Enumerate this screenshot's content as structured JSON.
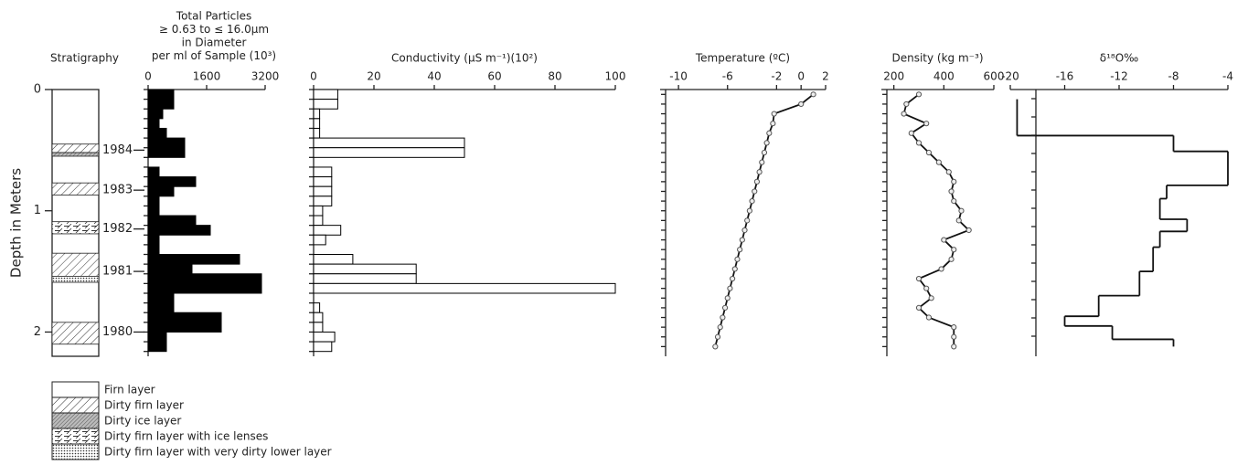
{
  "chart_data": [
    {
      "type": "stratigraphy",
      "title": "Stratigraphy",
      "ylabel": "Depth in Meters",
      "ylim": [
        0,
        2.2
      ],
      "yticks": [
        0,
        1,
        2
      ],
      "years": [
        {
          "label": "1984",
          "depth": 0.5
        },
        {
          "label": "1983",
          "depth": 0.83
        },
        {
          "label": "1982",
          "depth": 1.15
        },
        {
          "label": "1981",
          "depth": 1.5
        },
        {
          "label": "1980",
          "depth": 2.0
        }
      ],
      "legend": [
        {
          "label": "Firn layer",
          "layers": []
        },
        {
          "label": "Dirty firn layer",
          "layers": [
            [
              0.45,
              0.52
            ],
            [
              0.77,
              0.87
            ],
            [
              1.35,
              1.54
            ],
            [
              1.92,
              2.1
            ]
          ]
        },
        {
          "label": "Dirty ice layer",
          "layers": [
            [
              0.52,
              0.55
            ]
          ]
        },
        {
          "label": "Dirty firn layer with ice lenses",
          "layers": [
            [
              1.09,
              1.19
            ]
          ]
        },
        {
          "label": "Dirty firn layer with very dirty lower layer",
          "layers": [
            [
              1.54,
              1.59
            ]
          ]
        }
      ]
    },
    {
      "type": "bar",
      "title": [
        "Total Particles",
        "≥ 0.63 to ≤ 16.0µm",
        "in Diameter",
        "per ml of Sample (10³)"
      ],
      "color": "#000000",
      "xlim": [
        0,
        3200
      ],
      "xticks": [
        0,
        1600,
        3200
      ],
      "depth_edges": [
        0,
        0.08,
        0.16,
        0.24,
        0.32,
        0.4,
        0.48,
        0.56,
        0.64,
        0.72,
        0.8,
        0.88,
        0.96,
        1.04,
        1.12,
        1.2,
        1.28,
        1.36,
        1.44,
        1.52,
        1.6,
        1.68,
        1.76,
        1.84,
        1.92,
        2,
        2.08,
        2.16
      ],
      "values": [
        700,
        700,
        400,
        300,
        500,
        1000,
        1000,
        0,
        300,
        1300,
        700,
        300,
        300,
        1300,
        1700,
        300,
        300,
        2500,
        1200,
        3100,
        3100,
        700,
        700,
        2000,
        2000,
        500,
        500
      ]
    },
    {
      "type": "bar",
      "title": "Conductivity (µS m⁻¹)(10²)",
      "color": "#ffffff",
      "xlim": [
        0,
        100
      ],
      "xticks": [
        0,
        20,
        40,
        60,
        80,
        100
      ],
      "depth_edges": [
        0,
        0.08,
        0.16,
        0.24,
        0.32,
        0.4,
        0.48,
        0.56,
        0.64,
        0.72,
        0.8,
        0.88,
        0.96,
        1.04,
        1.12,
        1.2,
        1.28,
        1.36,
        1.44,
        1.52,
        1.6,
        1.68,
        1.76,
        1.84,
        1.92,
        2,
        2.08,
        2.16
      ],
      "values": [
        8,
        8,
        2,
        2,
        2,
        50,
        50,
        0,
        6,
        6,
        6,
        6,
        3,
        3,
        9,
        4,
        0,
        13,
        34,
        34,
        100,
        0,
        2,
        3,
        3,
        7,
        6
      ]
    },
    {
      "type": "line",
      "title": "Temperature (ºC)",
      "xlim": [
        -11.5,
        2
      ],
      "xticks": [
        -10,
        -6,
        -2,
        0,
        2
      ],
      "depth": [
        0.04,
        0.12,
        0.2,
        0.28,
        0.36,
        0.44,
        0.52,
        0.6,
        0.68,
        0.76,
        0.84,
        0.92,
        1,
        1.08,
        1.16,
        1.24,
        1.32,
        1.4,
        1.48,
        1.56,
        1.64,
        1.72,
        1.8,
        1.88,
        1.96,
        2.04,
        2.12
      ],
      "values": [
        1,
        0,
        -2.2,
        -2.3,
        -2.6,
        -2.8,
        -3.0,
        -3.2,
        -3.4,
        -3.6,
        -3.8,
        -4.0,
        -4.2,
        -4.4,
        -4.6,
        -4.8,
        -5.0,
        -5.2,
        -5.4,
        -5.6,
        -5.8,
        -6.0,
        -6.2,
        -6.4,
        -6.6,
        -6.8,
        -7.0
      ]
    },
    {
      "type": "line",
      "title": "Density (kg m⁻³)",
      "xlim": [
        150,
        600
      ],
      "xticks": [
        200,
        400,
        600
      ],
      "depth": [
        0.04,
        0.12,
        0.2,
        0.28,
        0.36,
        0.44,
        0.52,
        0.6,
        0.68,
        0.76,
        0.84,
        0.92,
        1,
        1.08,
        1.16,
        1.24,
        1.32,
        1.4,
        1.48,
        1.56,
        1.64,
        1.72,
        1.8,
        1.88,
        1.96,
        2.04,
        2.12
      ],
      "values": [
        300,
        250,
        240,
        330,
        270,
        300,
        340,
        380,
        420,
        440,
        430,
        440,
        470,
        460,
        500,
        400,
        440,
        430,
        390,
        300,
        330,
        350,
        300,
        340,
        440,
        440,
        440
      ]
    },
    {
      "type": "step",
      "title": "δ¹⁸O‰",
      "xlim": [
        -20,
        -4
      ],
      "xticks": [
        -20,
        -16,
        -12,
        -8,
        -4
      ],
      "depth_edges": [
        0.08,
        0.38,
        0.51,
        0.79,
        0.9,
        1.07,
        1.17,
        1.3,
        1.5,
        1.7,
        1.87,
        1.95,
        2.06,
        2.12
      ],
      "values": [
        -19.5,
        -8,
        -4,
        -8.5,
        -9,
        -7,
        -9,
        -9.5,
        -10.5,
        -13.5,
        -16,
        -12.5,
        -8
      ]
    }
  ]
}
